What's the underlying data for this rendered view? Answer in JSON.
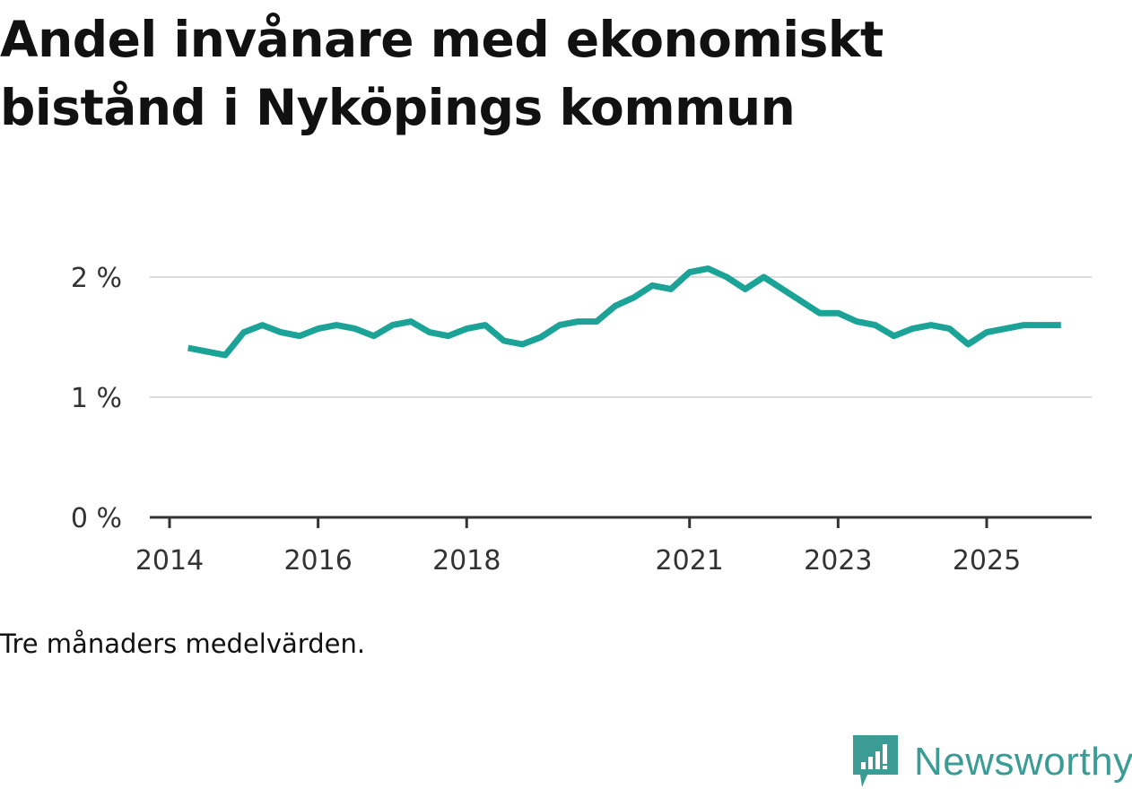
{
  "title": "Andel invånare med ekonomiskt bistånd i Nyköpings kommun",
  "note": "Tre månaders medelvärden.",
  "brand": {
    "name": "Newsworthy",
    "icon": "newsworthy-logo-icon",
    "color": "#3a9c95"
  },
  "chart_data": {
    "type": "line",
    "title": "Andel invånare med ekonomiskt bistånd i Nyköpings kommun",
    "xlabel": "",
    "ylabel": "",
    "color": "#1aa396",
    "ylim": [
      0,
      2.5
    ],
    "xlim": [
      2014.0,
      2026.4
    ],
    "y_ticks": [
      {
        "value": 0,
        "label": "0 %"
      },
      {
        "value": 1,
        "label": "1 %"
      },
      {
        "value": 2,
        "label": "2 %"
      }
    ],
    "x_ticks": [
      {
        "value": 2014.0,
        "label": "2014"
      },
      {
        "value": 2016.0,
        "label": "2016"
      },
      {
        "value": 2018.0,
        "label": "2018"
      },
      {
        "value": 2021.0,
        "label": "2021"
      },
      {
        "value": 2023.0,
        "label": "2023"
      },
      {
        "value": 2025.0,
        "label": "2025"
      }
    ],
    "series": [
      {
        "name": "Andel invånare med ekonomiskt bistånd",
        "x": [
          2014.25,
          2014.5,
          2014.75,
          2015.0,
          2015.25,
          2015.5,
          2015.75,
          2016.0,
          2016.25,
          2016.5,
          2016.75,
          2017.0,
          2017.25,
          2017.5,
          2017.75,
          2018.0,
          2018.25,
          2018.5,
          2018.75,
          2019.0,
          2019.25,
          2019.5,
          2019.75,
          2020.0,
          2020.25,
          2020.5,
          2020.75,
          2021.0,
          2021.25,
          2021.5,
          2021.75,
          2022.0,
          2022.25,
          2022.5,
          2022.75,
          2023.0,
          2023.25,
          2023.5,
          2023.75,
          2024.0,
          2024.25,
          2024.5,
          2024.75,
          2025.0,
          2025.25,
          2025.5,
          2025.75,
          2026.0
        ],
        "values": [
          1.41,
          1.38,
          1.35,
          1.54,
          1.6,
          1.54,
          1.51,
          1.57,
          1.6,
          1.57,
          1.51,
          1.6,
          1.63,
          1.54,
          1.51,
          1.57,
          1.6,
          1.47,
          1.44,
          1.5,
          1.6,
          1.63,
          1.63,
          1.76,
          1.83,
          1.93,
          1.9,
          2.04,
          2.07,
          2.0,
          1.9,
          2.0,
          1.9,
          1.8,
          1.7,
          1.7,
          1.63,
          1.6,
          1.51,
          1.57,
          1.6,
          1.57,
          1.44,
          1.54,
          1.57,
          1.6,
          1.6,
          1.6
        ]
      }
    ]
  }
}
